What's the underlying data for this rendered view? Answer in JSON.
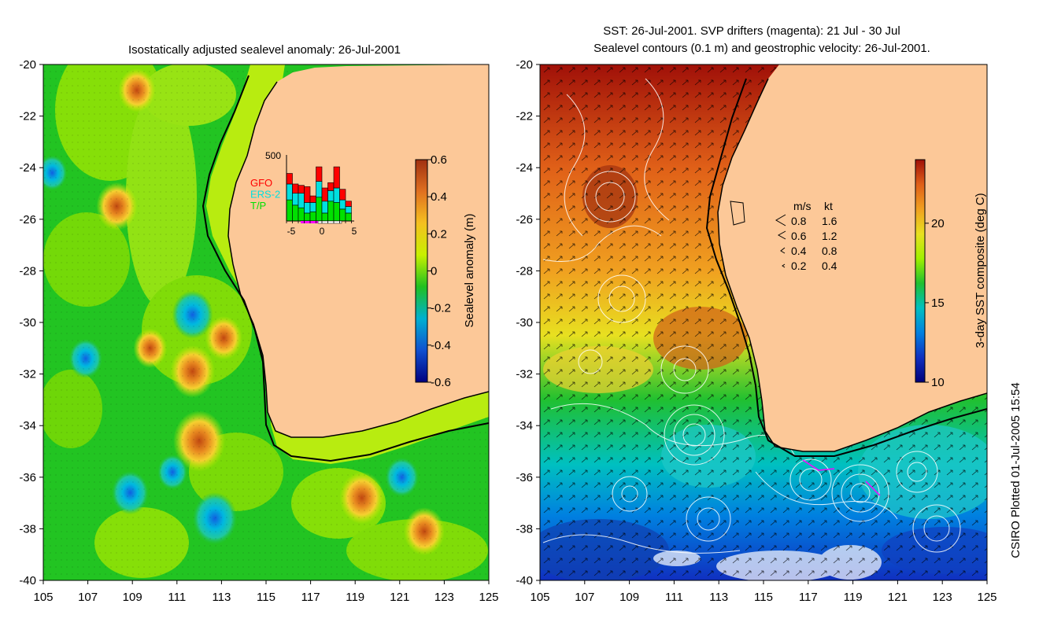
{
  "credit": "CSIRO Plotted 01-Jul-2005 15:54",
  "chart_data": [
    {
      "type": "heatmap",
      "title": "Isostatically adjusted sealevel anomaly: 26-Jul-2001",
      "xlim": [
        105,
        125
      ],
      "ylim": [
        -40,
        -20
      ],
      "x_ticks": [
        "105",
        "107",
        "109",
        "111",
        "113",
        "115",
        "117",
        "119",
        "121",
        "123",
        "125"
      ],
      "y_ticks": [
        "-20",
        "-22",
        "-24",
        "-26",
        "-28",
        "-30",
        "-32",
        "-34",
        "-36",
        "-38",
        "-40"
      ],
      "colorbar": {
        "label": "Sealevel anomaly (m)",
        "range": [
          -0.6,
          0.6
        ],
        "ticks": [
          "0.6",
          "0.4",
          "0.2",
          "0",
          "-0.2",
          "-0.4",
          "-0.6"
        ],
        "colors": [
          "#a03010",
          "#e07020",
          "#f5c020",
          "#c8f000",
          "#20c020",
          "#00b0d0",
          "#1050d0",
          "#000080"
        ]
      },
      "anomalies": [
        {
          "lon": 112.0,
          "lat": -34.6,
          "value": 0.45
        },
        {
          "lon": 111.7,
          "lat": -31.9,
          "value": 0.35
        },
        {
          "lon": 119.3,
          "lat": -36.8,
          "value": 0.35
        },
        {
          "lon": 108.3,
          "lat": -25.5,
          "value": 0.3
        },
        {
          "lon": 109.2,
          "lat": -21.0,
          "value": 0.25
        },
        {
          "lon": 113.1,
          "lat": -30.6,
          "value": 0.25
        },
        {
          "lon": 122.1,
          "lat": -38.1,
          "value": 0.3
        },
        {
          "lon": 109.8,
          "lat": -31.0,
          "value": 0.2
        },
        {
          "lon": 111.7,
          "lat": -29.7,
          "value": -0.3
        },
        {
          "lon": 112.7,
          "lat": -37.6,
          "value": -0.35
        },
        {
          "lon": 108.9,
          "lat": -36.6,
          "value": -0.25
        },
        {
          "lon": 106.9,
          "lat": -31.4,
          "value": -0.2
        },
        {
          "lon": 110.8,
          "lat": -35.8,
          "value": -0.15
        },
        {
          "lon": 121.1,
          "lat": -36.0,
          "value": -0.2
        },
        {
          "lon": 105.4,
          "lat": -24.2,
          "value": -0.15
        }
      ],
      "inset": {
        "ymax_label": "500",
        "x_ticks": [
          "-5",
          "0",
          "5"
        ],
        "legend": [
          {
            "name": "GFO",
            "color": "#ff0000"
          },
          {
            "name": "ERS-2",
            "color": "#00e0e0"
          },
          {
            "name": "T/P",
            "color": "#00e000"
          }
        ],
        "stacks": [
          {
            "gfo": 80,
            "ers2": 120,
            "tp": 160
          },
          {
            "gfo": 70,
            "ers2": 90,
            "tp": 120
          },
          {
            "gfo": 60,
            "ers2": 110,
            "tp": 100
          },
          {
            "gfo": 120,
            "ers2": 80,
            "tp": 60
          },
          {
            "gfo": 50,
            "ers2": 70,
            "tp": 70
          },
          {
            "gfo": 110,
            "ers2": 120,
            "tp": 180
          },
          {
            "gfo": 100,
            "ers2": 90,
            "tp": 60
          },
          {
            "gfo": 60,
            "ers2": 80,
            "tp": 150
          },
          {
            "gfo": 160,
            "ers2": 110,
            "tp": 140
          },
          {
            "gfo": 80,
            "ers2": 70,
            "tp": 90
          },
          {
            "gfo": 40,
            "ers2": 50,
            "tp": 60
          }
        ]
      }
    },
    {
      "type": "heatmap",
      "title": "SST: 26-Jul-2001. SVP drifters (magenta): 21 Jul - 30 Jul",
      "subtitle": "Sealevel contours (0.1 m) and geostrophic velocity: 26-Jul-2001.",
      "xlim": [
        105,
        125
      ],
      "ylim": [
        -40,
        -20
      ],
      "x_ticks": [
        "105",
        "107",
        "109",
        "111",
        "113",
        "115",
        "117",
        "119",
        "121",
        "123",
        "125"
      ],
      "y_ticks": [
        "-20",
        "-22",
        "-24",
        "-26",
        "-28",
        "-30",
        "-32",
        "-34",
        "-36",
        "-38",
        "-40"
      ],
      "colorbar": {
        "label": "3-day SST composite (deg C)",
        "range": [
          10,
          24
        ],
        "ticks": [
          "20",
          "15",
          "10"
        ],
        "tick_values": [
          20,
          15,
          10
        ],
        "colors": [
          "#a01008",
          "#e06018",
          "#f0a020",
          "#e8e020",
          "#a0f000",
          "#20c030",
          "#00c0c0",
          "#0080e0",
          "#1030c0",
          "#00007a"
        ]
      },
      "sst_bands": [
        {
          "lat": -20.0,
          "value": 23.5
        },
        {
          "lat": -24.0,
          "value": 22.0
        },
        {
          "lat": -28.0,
          "value": 20.5
        },
        {
          "lat": -30.5,
          "value": 19.0
        },
        {
          "lat": -33.0,
          "value": 17.0
        },
        {
          "lat": -35.5,
          "value": 15.0
        },
        {
          "lat": -37.5,
          "value": 13.0
        },
        {
          "lat": -40.0,
          "value": 11.0
        }
      ],
      "velocity_legend": {
        "header_ms": "m/s",
        "header_kt": "kt",
        "rows": [
          {
            "ms": "0.8",
            "kt": "1.6"
          },
          {
            "ms": "0.6",
            "kt": "1.2"
          },
          {
            "ms": "0.4",
            "kt": "0.8"
          },
          {
            "ms": "0.2",
            "kt": "0.4"
          }
        ]
      }
    }
  ]
}
